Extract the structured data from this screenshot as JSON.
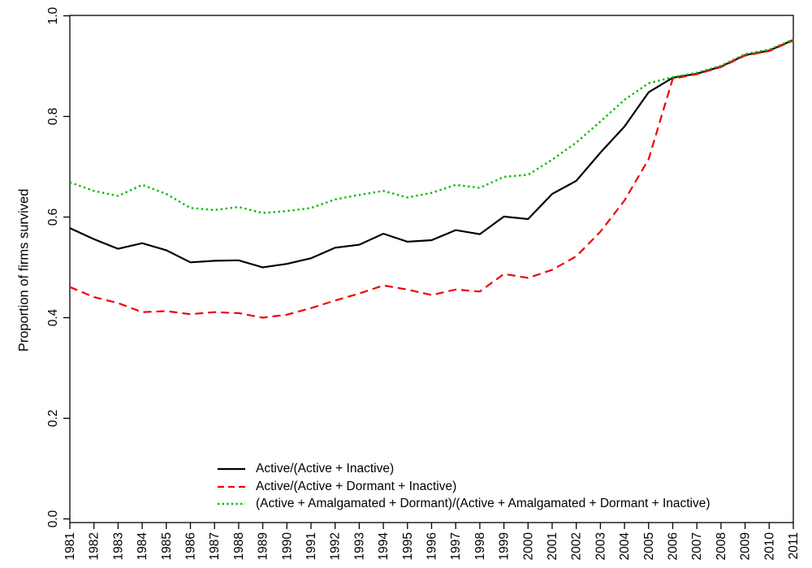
{
  "chart_data": {
    "type": "line",
    "title": "",
    "xlabel": "",
    "ylabel": "Proportion of firms survived",
    "ylim": [
      0.0,
      1.0
    ],
    "grid": false,
    "legend_position": "bottom-center-inside",
    "y_tick_labels": [
      "0.0",
      "0.2",
      "0.4",
      "0.6",
      "0.8",
      "1.0"
    ],
    "x_tick_labels": [
      "1981",
      "1982",
      "1983",
      "1984",
      "1985",
      "1986",
      "1987",
      "1988",
      "1989",
      "1990",
      "1991",
      "1992",
      "1993",
      "1994",
      "1995",
      "1996",
      "1997",
      "1998",
      "1999",
      "2000",
      "2001",
      "2002",
      "2003",
      "2004",
      "2005",
      "2006",
      "2007",
      "2008",
      "2009",
      "2010",
      "2011"
    ],
    "x": [
      1981,
      1982,
      1983,
      1984,
      1985,
      1986,
      1987,
      1988,
      1989,
      1990,
      1991,
      1992,
      1993,
      1994,
      1995,
      1996,
      1997,
      1998,
      1999,
      2000,
      2001,
      2002,
      2003,
      2004,
      2005,
      2006,
      2007,
      2008,
      2009,
      2010,
      2011
    ],
    "series": [
      {
        "name": "Active/(Active + Inactive)",
        "color": "#000000",
        "line_style": "solid",
        "values": [
          0.578,
          0.556,
          0.537,
          0.548,
          0.534,
          0.51,
          0.513,
          0.514,
          0.5,
          0.507,
          0.518,
          0.539,
          0.545,
          0.567,
          0.551,
          0.554,
          0.574,
          0.566,
          0.601,
          0.596,
          0.646,
          0.672,
          0.728,
          0.78,
          0.848,
          0.877,
          0.885,
          0.899,
          0.922,
          0.931,
          0.952
        ]
      },
      {
        "name": "Active/(Active + Dormant + Inactive)",
        "color": "#ee0000",
        "line_style": "dashed",
        "values": [
          0.461,
          0.441,
          0.429,
          0.411,
          0.413,
          0.407,
          0.411,
          0.409,
          0.4,
          0.406,
          0.419,
          0.434,
          0.448,
          0.464,
          0.456,
          0.445,
          0.456,
          0.452,
          0.487,
          0.479,
          0.495,
          0.522,
          0.571,
          0.633,
          0.715,
          0.875,
          0.884,
          0.898,
          0.921,
          0.93,
          0.951
        ]
      },
      {
        "name": "(Active + Amalgamated + Dormant)/(Active + Amalgamated + Dormant + Inactive)",
        "color": "#00bb00",
        "line_style": "dotted",
        "values": [
          0.669,
          0.652,
          0.642,
          0.664,
          0.646,
          0.618,
          0.614,
          0.62,
          0.608,
          0.612,
          0.618,
          0.635,
          0.644,
          0.652,
          0.639,
          0.648,
          0.664,
          0.658,
          0.68,
          0.684,
          0.714,
          0.748,
          0.79,
          0.833,
          0.866,
          0.878,
          0.887,
          0.901,
          0.924,
          0.933,
          0.953
        ]
      }
    ]
  }
}
